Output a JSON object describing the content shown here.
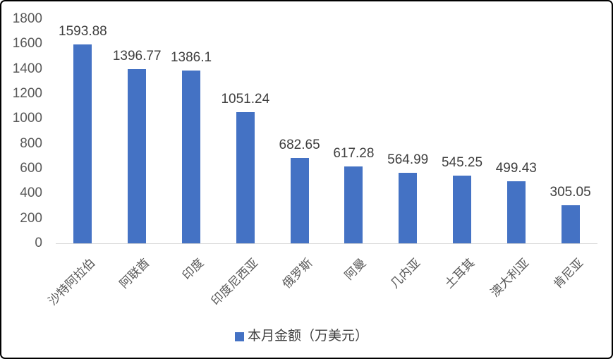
{
  "chart_data": {
    "type": "bar",
    "title": "",
    "xlabel": "",
    "ylabel": "",
    "categories": [
      "沙特阿拉伯",
      "阿联酋",
      "印度",
      "印度尼西亚",
      "俄罗斯",
      "阿曼",
      "几内亚",
      "土耳其",
      "澳大利亚",
      "肯尼亚"
    ],
    "values": [
      1593.88,
      1396.77,
      1386.1,
      1051.24,
      682.65,
      617.28,
      564.99,
      545.25,
      499.43,
      305.05
    ],
    "value_labels": [
      "1593.88",
      "1396.77",
      "1386.1",
      "1051.24",
      "682.65",
      "617.28",
      "564.99",
      "545.25",
      "499.43",
      "305.05"
    ],
    "series_name": "本月金额（万美元）",
    "ylim": [
      0,
      1800
    ],
    "yticks": [
      0,
      200,
      400,
      600,
      800,
      1000,
      1200,
      1400,
      1600,
      1800
    ],
    "grid": false,
    "legend_position": "bottom",
    "legend": {
      "label": "本月金额（万美元）"
    }
  },
  "colors": {
    "bar": "#4472c4",
    "value_label": "#3f3f3f",
    "axis_label": "#595959",
    "axis_line": "#d6d6d6",
    "border": "#000000",
    "background": "#ffffff"
  }
}
